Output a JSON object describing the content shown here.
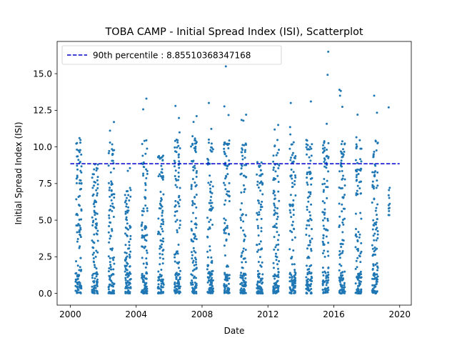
{
  "chart_data": {
    "type": "scatter",
    "title": "TOBA CAMP - Initial Spread Index (ISI), Scatterplot",
    "xlabel": "Date",
    "ylabel": "Initial Spread Index (ISI)",
    "xlim": [
      "1999-03-15",
      "2020-09-15"
    ],
    "ylim": [
      -0.8,
      17.2
    ],
    "x_ticks": [
      "2000",
      "2004",
      "2008",
      "2012",
      "2016",
      "2020"
    ],
    "y_ticks": [
      "0.0",
      "2.5",
      "5.0",
      "7.5",
      "10.0",
      "12.5",
      "15.0"
    ],
    "grid": false,
    "legend_position": "top-left",
    "point_color": "#1f77b4",
    "reference_line": {
      "label": "90th percentile : 8.85510368347168",
      "value": 8.85510368347168,
      "color": "#0000cc",
      "style": "dashed",
      "x_range": [
        "2000-01-01",
        "2019-12-31"
      ]
    },
    "series": [
      {
        "fire_seasons": [
          {
            "year": 2000,
            "max": 10.6
          },
          {
            "year": 2001,
            "max": 8.8
          },
          {
            "year": 2002,
            "max": 11.7
          },
          {
            "year": 2003,
            "max": 7.2
          },
          {
            "year": 2004,
            "max": 13.3
          },
          {
            "year": 2005,
            "max": 9.4
          },
          {
            "year": 2006,
            "max": 12.8
          },
          {
            "year": 2007,
            "max": 12.1
          },
          {
            "year": 2008,
            "max": 13.0
          },
          {
            "year": 2009,
            "max": 15.5
          },
          {
            "year": 2010,
            "max": 12.2
          },
          {
            "year": 2011,
            "max": 8.7
          },
          {
            "year": 2012,
            "max": 11.5
          },
          {
            "year": 2013,
            "max": 13.0
          },
          {
            "year": 2014,
            "max": 13.1
          },
          {
            "year": 2015,
            "max": 16.5
          },
          {
            "year": 2016,
            "max": 13.9
          },
          {
            "year": 2017,
            "max": 12.2
          },
          {
            "year": 2018,
            "max": 13.5
          },
          {
            "year": 2019,
            "max": 12.7
          }
        ]
      }
    ]
  }
}
